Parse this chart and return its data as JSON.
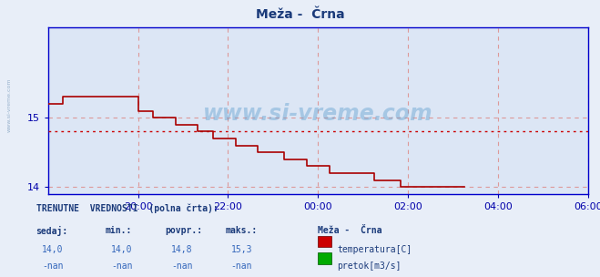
{
  "title": "Meža -  Črna",
  "title_color": "#1a3a7a",
  "bg_color": "#e8eef8",
  "plot_bg_color": "#dce6f5",
  "line_color": "#aa0000",
  "avg_line_color": "#cc0000",
  "avg_value": 14.8,
  "ylim": [
    13.9,
    16.3
  ],
  "yticks": [
    14,
    15
  ],
  "grid_color": "#dd9999",
  "axis_color": "#0000cc",
  "watermark": "www.si-vreme.com",
  "watermark_color": "#5599cc",
  "temp_data_y": [
    15.2,
    15.2,
    15.2,
    15.2,
    15.3,
    15.3,
    15.3,
    15.3,
    15.3,
    15.3,
    15.3,
    15.3,
    15.3,
    15.3,
    15.3,
    15.3,
    15.3,
    15.3,
    15.3,
    15.3,
    15.3,
    15.3,
    15.3,
    15.3,
    15.1,
    15.1,
    15.1,
    15.1,
    15.0,
    15.0,
    15.0,
    15.0,
    15.0,
    15.0,
    14.9,
    14.9,
    14.9,
    14.9,
    14.9,
    14.9,
    14.8,
    14.8,
    14.8,
    14.8,
    14.7,
    14.7,
    14.7,
    14.7,
    14.7,
    14.7,
    14.6,
    14.6,
    14.6,
    14.6,
    14.6,
    14.6,
    14.5,
    14.5,
    14.5,
    14.5,
    14.5,
    14.5,
    14.5,
    14.4,
    14.4,
    14.4,
    14.4,
    14.4,
    14.4,
    14.3,
    14.3,
    14.3,
    14.3,
    14.3,
    14.3,
    14.2,
    14.2,
    14.2,
    14.2,
    14.2,
    14.2,
    14.2,
    14.2,
    14.2,
    14.2,
    14.2,
    14.2,
    14.1,
    14.1,
    14.1,
    14.1,
    14.1,
    14.1,
    14.1,
    14.0,
    14.0,
    14.0,
    14.0,
    14.0,
    14.0,
    14.0,
    14.0,
    14.0,
    14.0,
    14.0,
    14.0,
    14.0,
    14.0,
    14.0,
    14.0,
    14.0,
    14.0
  ],
  "total_points": 144,
  "xtick_positions": [
    24,
    48,
    72,
    96,
    120,
    144
  ],
  "xtick_labels": [
    "20:00",
    "22:00",
    "00:00",
    "02:00",
    "04:00",
    "06:00"
  ]
}
